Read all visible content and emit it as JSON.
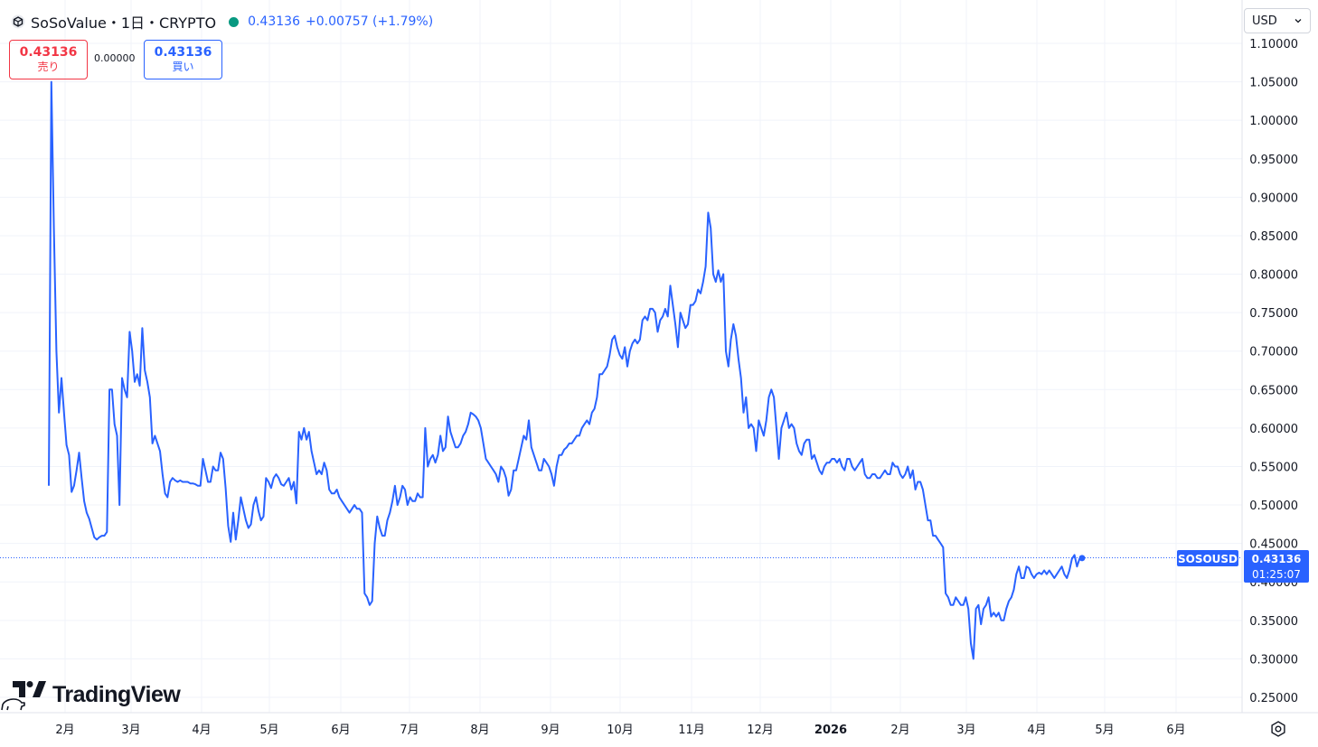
{
  "header": {
    "title": "SoSoValue・1日・CRYPTO",
    "price": "0.43136",
    "change": "+0.00757 (+1.79%)"
  },
  "trade": {
    "sell_price": "0.43136",
    "sell_label": "売り",
    "spread": "0.00000",
    "buy_price": "0.43136",
    "buy_label": "買い"
  },
  "currency": "USD",
  "price_tag": {
    "symbol": "SOSOUSD",
    "price": "0.43136",
    "countdown": "01:25:07"
  },
  "logo": "TradingView",
  "colors": {
    "line": "#2962ff",
    "sell": "#f23645",
    "buy": "#2962ff",
    "grid": "#f0f3fa",
    "live_dot": "#089981"
  },
  "chart_data": {
    "type": "line",
    "series": [
      {
        "name": "SOSOUSD",
        "x_start": "2025-01-24",
        "x_end": "2026-04-20",
        "values": [
          0.525,
          1.05,
          0.86,
          0.7,
          0.62,
          0.665,
          0.62,
          0.578,
          0.565,
          0.517,
          0.525,
          0.545,
          0.568,
          0.535,
          0.505,
          0.49,
          0.482,
          0.47,
          0.458,
          0.455,
          0.458,
          0.46,
          0.46,
          0.465,
          0.65,
          0.65,
          0.605,
          0.59,
          0.5,
          0.665,
          0.65,
          0.64,
          0.725,
          0.7,
          0.66,
          0.67,
          0.655,
          0.73,
          0.675,
          0.66,
          0.64,
          0.58,
          0.59,
          0.58,
          0.57,
          0.54,
          0.515,
          0.51,
          0.53,
          0.535,
          0.532,
          0.53,
          0.532,
          0.53,
          0.53,
          0.53,
          0.528,
          0.528,
          0.527,
          0.525,
          0.525,
          0.56,
          0.545,
          0.53,
          0.53,
          0.55,
          0.545,
          0.545,
          0.568,
          0.56,
          0.522,
          0.473,
          0.452,
          0.49,
          0.455,
          0.48,
          0.51,
          0.495,
          0.48,
          0.47,
          0.475,
          0.5,
          0.51,
          0.492,
          0.48,
          0.485,
          0.535,
          0.53,
          0.522,
          0.535,
          0.54,
          0.535,
          0.527,
          0.525,
          0.53,
          0.535,
          0.52,
          0.53,
          0.502,
          0.595,
          0.585,
          0.6,
          0.585,
          0.595,
          0.57,
          0.555,
          0.54,
          0.545,
          0.54,
          0.555,
          0.545,
          0.52,
          0.515,
          0.515,
          0.52,
          0.51,
          0.505,
          0.5,
          0.495,
          0.49,
          0.495,
          0.5,
          0.495,
          0.495,
          0.49,
          0.385,
          0.38,
          0.37,
          0.375,
          0.45,
          0.485,
          0.47,
          0.46,
          0.46,
          0.48,
          0.49,
          0.505,
          0.525,
          0.5,
          0.51,
          0.525,
          0.52,
          0.5,
          0.51,
          0.505,
          0.505,
          0.515,
          0.51,
          0.51,
          0.6,
          0.55,
          0.56,
          0.565,
          0.555,
          0.565,
          0.59,
          0.57,
          0.575,
          0.615,
          0.595,
          0.585,
          0.575,
          0.575,
          0.58,
          0.59,
          0.595,
          0.605,
          0.62,
          0.618,
          0.615,
          0.61,
          0.6,
          0.58,
          0.56,
          0.555,
          0.55,
          0.545,
          0.54,
          0.53,
          0.55,
          0.545,
          0.535,
          0.512,
          0.52,
          0.545,
          0.545,
          0.56,
          0.575,
          0.59,
          0.585,
          0.61,
          0.575,
          0.565,
          0.555,
          0.545,
          0.545,
          0.56,
          0.555,
          0.55,
          0.54,
          0.525,
          0.55,
          0.565,
          0.565,
          0.572,
          0.575,
          0.58,
          0.58,
          0.585,
          0.59,
          0.59,
          0.6,
          0.605,
          0.61,
          0.605,
          0.62,
          0.625,
          0.64,
          0.67,
          0.67,
          0.675,
          0.68,
          0.695,
          0.715,
          0.72,
          0.705,
          0.695,
          0.69,
          0.705,
          0.68,
          0.7,
          0.71,
          0.715,
          0.71,
          0.715,
          0.74,
          0.745,
          0.74,
          0.755,
          0.755,
          0.75,
          0.725,
          0.74,
          0.745,
          0.755,
          0.745,
          0.785,
          0.76,
          0.735,
          0.705,
          0.75,
          0.74,
          0.73,
          0.735,
          0.76,
          0.76,
          0.765,
          0.78,
          0.775,
          0.79,
          0.81,
          0.88,
          0.86,
          0.8,
          0.79,
          0.805,
          0.79,
          0.8,
          0.7,
          0.68,
          0.715,
          0.735,
          0.72,
          0.69,
          0.665,
          0.62,
          0.64,
          0.6,
          0.605,
          0.6,
          0.57,
          0.61,
          0.6,
          0.59,
          0.61,
          0.64,
          0.65,
          0.64,
          0.6,
          0.56,
          0.6,
          0.61,
          0.62,
          0.6,
          0.605,
          0.6,
          0.58,
          0.57,
          0.565,
          0.58,
          0.585,
          0.585,
          0.56,
          0.565,
          0.555,
          0.545,
          0.54,
          0.55,
          0.555,
          0.555,
          0.56,
          0.56,
          0.555,
          0.56,
          0.55,
          0.545,
          0.56,
          0.56,
          0.55,
          0.545,
          0.55,
          0.555,
          0.56,
          0.54,
          0.535,
          0.535,
          0.54,
          0.54,
          0.535,
          0.535,
          0.54,
          0.545,
          0.54,
          0.54,
          0.555,
          0.55,
          0.55,
          0.54,
          0.535,
          0.54,
          0.55,
          0.535,
          0.545,
          0.52,
          0.53,
          0.53,
          0.52,
          0.5,
          0.48,
          0.48,
          0.46,
          0.46,
          0.455,
          0.45,
          0.445,
          0.385,
          0.38,
          0.37,
          0.37,
          0.38,
          0.375,
          0.37,
          0.37,
          0.38,
          0.365,
          0.32,
          0.3,
          0.365,
          0.37,
          0.345,
          0.365,
          0.37,
          0.38,
          0.355,
          0.36,
          0.355,
          0.36,
          0.35,
          0.35,
          0.365,
          0.375,
          0.38,
          0.39,
          0.41,
          0.42,
          0.405,
          0.405,
          0.42,
          0.418,
          0.41,
          0.405,
          0.41,
          0.412,
          0.41,
          0.415,
          0.41,
          0.415,
          0.41,
          0.405,
          0.41,
          0.415,
          0.42,
          0.41,
          0.405,
          0.415,
          0.43,
          0.435,
          0.42,
          0.43,
          0.431
        ]
      }
    ],
    "x_tick_labels": [
      "2月",
      "3月",
      "4月",
      "5月",
      "6月",
      "7月",
      "8月",
      "9月",
      "10月",
      "11月",
      "12月",
      "2026",
      "2月",
      "3月",
      "4月",
      "5月",
      "6月"
    ],
    "y_tick_labels": [
      "1.10000",
      "1.05000",
      "1.00000",
      "0.95000",
      "0.90000",
      "0.85000",
      "0.80000",
      "0.75000",
      "0.70000",
      "0.65000",
      "0.60000",
      "0.55000",
      "0.50000",
      "0.45000",
      "0.40000",
      "0.35000",
      "0.30000",
      "0.25000"
    ],
    "y_ticks": [
      1.1,
      1.05,
      1.0,
      0.95,
      0.9,
      0.85,
      0.8,
      0.75,
      0.7,
      0.65,
      0.6,
      0.55,
      0.5,
      0.45,
      0.4,
      0.35,
      0.3,
      0.25
    ],
    "ylim": [
      0.25,
      1.1
    ],
    "last_value": 0.43136,
    "grid": true,
    "title": "",
    "xlabel": "",
    "ylabel": ""
  }
}
